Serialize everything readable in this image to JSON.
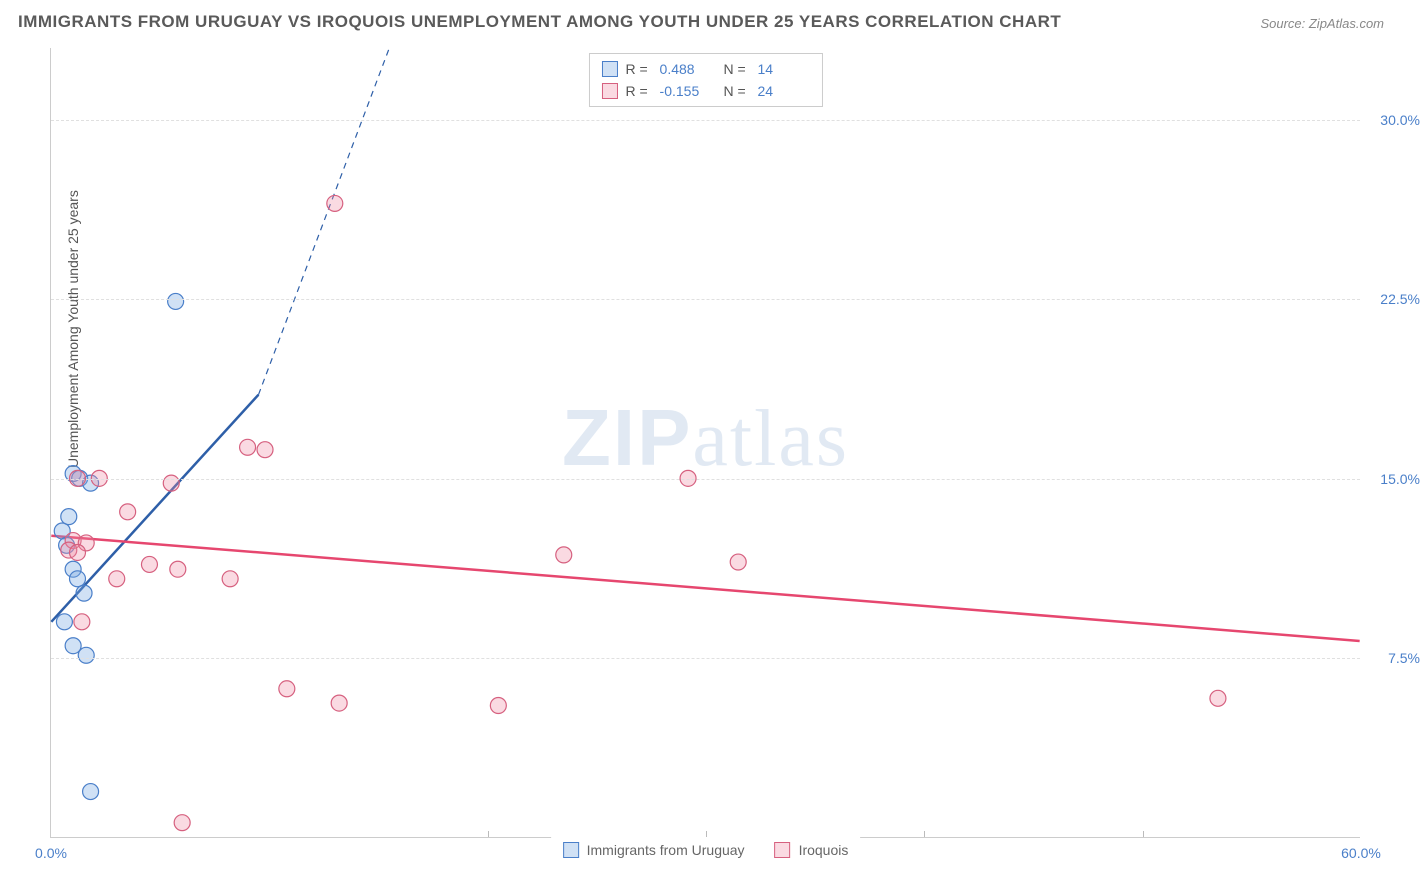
{
  "title": "IMMIGRANTS FROM URUGUAY VS IROQUOIS UNEMPLOYMENT AMONG YOUTH UNDER 25 YEARS CORRELATION CHART",
  "source": "Source: ZipAtlas.com",
  "ylabel": "Unemployment Among Youth under 25 years",
  "watermark_bold": "ZIP",
  "watermark_light": "atlas",
  "chart": {
    "type": "scatter",
    "xlim": [
      0,
      60
    ],
    "ylim": [
      0,
      33
    ],
    "yticks": [
      {
        "v": 7.5,
        "label": "7.5%"
      },
      {
        "v": 15.0,
        "label": "15.0%"
      },
      {
        "v": 22.5,
        "label": "22.5%"
      },
      {
        "v": 30.0,
        "label": "30.0%"
      }
    ],
    "xticks": [
      {
        "v": 0,
        "label": "0.0%"
      },
      {
        "v": 20,
        "label": ""
      },
      {
        "v": 30,
        "label": ""
      },
      {
        "v": 40,
        "label": ""
      },
      {
        "v": 50,
        "label": ""
      },
      {
        "v": 60,
        "label": "60.0%"
      }
    ],
    "background_color": "#ffffff",
    "grid_color": "#e0e0e0",
    "marker_radius": 8,
    "marker_stroke_width": 1.2,
    "series": [
      {
        "name": "Immigrants from Uruguay",
        "fill": "rgba(120,170,225,0.35)",
        "stroke": "#4a7fc9",
        "r_value": "0.488",
        "n_value": "14",
        "trend": {
          "x1": 0,
          "y1": 9.0,
          "x2": 9.5,
          "y2": 18.5,
          "color": "#2e5fa8",
          "width": 2.5,
          "dash_x1": 9.5,
          "dash_y1": 18.5,
          "dash_x2": 15.5,
          "dash_y2": 33.0
        },
        "points": [
          {
            "x": 0.5,
            "y": 12.8
          },
          {
            "x": 0.7,
            "y": 12.2
          },
          {
            "x": 1.0,
            "y": 15.2
          },
          {
            "x": 1.3,
            "y": 15.0
          },
          {
            "x": 1.8,
            "y": 14.8
          },
          {
            "x": 1.0,
            "y": 11.2
          },
          {
            "x": 0.8,
            "y": 13.4
          },
          {
            "x": 1.2,
            "y": 10.8
          },
          {
            "x": 1.5,
            "y": 10.2
          },
          {
            "x": 0.6,
            "y": 9.0
          },
          {
            "x": 1.0,
            "y": 8.0
          },
          {
            "x": 1.6,
            "y": 7.6
          },
          {
            "x": 5.7,
            "y": 22.4
          },
          {
            "x": 1.8,
            "y": 1.9
          }
        ]
      },
      {
        "name": "Iroquois",
        "fill": "rgba(240,140,165,0.32)",
        "stroke": "#d6607f",
        "r_value": "-0.155",
        "n_value": "24",
        "trend": {
          "x1": 0,
          "y1": 12.6,
          "x2": 60,
          "y2": 8.2,
          "color": "#e6476f",
          "width": 2.5
        },
        "points": [
          {
            "x": 1.2,
            "y": 15.0
          },
          {
            "x": 2.2,
            "y": 15.0
          },
          {
            "x": 1.0,
            "y": 12.4
          },
          {
            "x": 1.6,
            "y": 12.3
          },
          {
            "x": 0.8,
            "y": 12.0
          },
          {
            "x": 1.2,
            "y": 11.9
          },
          {
            "x": 3.5,
            "y": 13.6
          },
          {
            "x": 5.5,
            "y": 14.8
          },
          {
            "x": 3.0,
            "y": 10.8
          },
          {
            "x": 4.5,
            "y": 11.4
          },
          {
            "x": 5.8,
            "y": 11.2
          },
          {
            "x": 8.2,
            "y": 10.8
          },
          {
            "x": 9.0,
            "y": 16.3
          },
          {
            "x": 9.8,
            "y": 16.2
          },
          {
            "x": 13.0,
            "y": 26.5
          },
          {
            "x": 10.8,
            "y": 6.2
          },
          {
            "x": 13.2,
            "y": 5.6
          },
          {
            "x": 20.5,
            "y": 5.5
          },
          {
            "x": 23.5,
            "y": 11.8
          },
          {
            "x": 29.2,
            "y": 15.0
          },
          {
            "x": 31.5,
            "y": 11.5
          },
          {
            "x": 6.0,
            "y": 0.6
          },
          {
            "x": 53.5,
            "y": 5.8
          },
          {
            "x": 1.4,
            "y": 9.0
          }
        ]
      }
    ]
  },
  "x_legend": [
    {
      "label": "Immigrants from Uruguay",
      "fill": "rgba(120,170,225,0.35)",
      "stroke": "#4a7fc9"
    },
    {
      "label": "Iroquois",
      "fill": "rgba(240,140,165,0.32)",
      "stroke": "#d6607f"
    }
  ]
}
